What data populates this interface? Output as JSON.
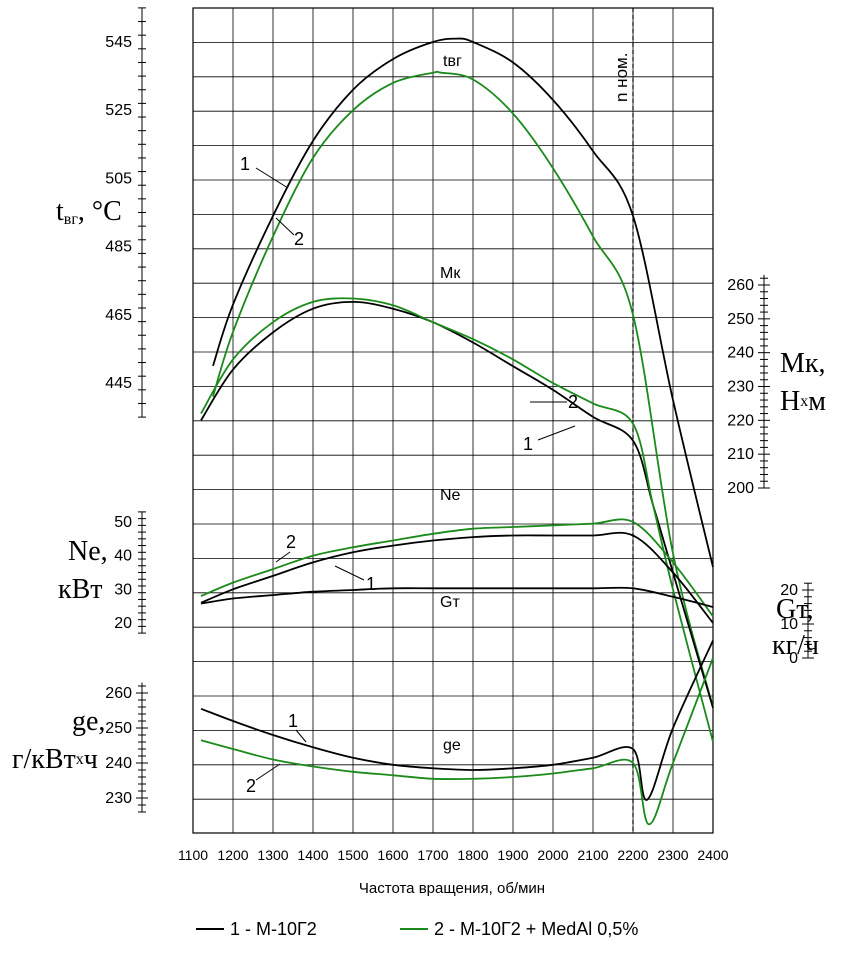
{
  "chart_data": {
    "type": "line",
    "xlabel": "Частота вращения, об/мин",
    "x_ticks": [
      1100,
      1200,
      1300,
      1400,
      1500,
      1600,
      1700,
      1800,
      1900,
      2000,
      2100,
      2200,
      2300,
      2400
    ],
    "x_range": [
      1100,
      2400
    ],
    "nominal_label": "n ном.",
    "nominal_x": 2200,
    "legend": [
      {
        "label": "1 - М-10Г2",
        "color": "#000000"
      },
      {
        "label": "2 - М-10Г2 + MedAl 0,5%",
        "color": "#1a8a1a"
      }
    ],
    "axes": {
      "t": {
        "label_main": "t",
        "label_sub": "вг",
        "label_tail": ", °C",
        "ticks": [
          445,
          465,
          485,
          505,
          525,
          545
        ]
      },
      "M": {
        "label_line1": "Mк,",
        "label_line2_a": "Н",
        "label_line2_x": "x",
        "label_line2_b": "м",
        "ticks": [
          200,
          210,
          220,
          230,
          240,
          250,
          260
        ]
      },
      "N": {
        "label_line1": "Ne,",
        "label_line2": "кВт",
        "ticks": [
          20,
          30,
          40,
          50
        ]
      },
      "G": {
        "label_line1": "Gт,",
        "label_line2": "кг/ч",
        "ticks": [
          0,
          10,
          20
        ]
      },
      "g": {
        "label_line1": "ge,",
        "label_line2_a": "г/кВт",
        "label_line2_x": "x",
        "label_line2_b": "ч",
        "ticks": [
          230,
          240,
          250,
          260
        ]
      }
    },
    "curve_labels": {
      "t": "tвг",
      "M": "Mк",
      "N": "Ne",
      "G": "Gт",
      "g": "ge"
    },
    "series_markers": [
      "1",
      "2"
    ],
    "series": [
      {
        "name": "1",
        "param": "t",
        "x": [
          1150,
          1200,
          1300,
          1400,
          1500,
          1600,
          1700,
          1760,
          1800,
          1900,
          2000,
          2100,
          2200,
          2300,
          2400
        ],
        "values": [
          450,
          468,
          494,
          516,
          531,
          540,
          545,
          546,
          545,
          539,
          528,
          513,
          494,
          440,
          391
        ]
      },
      {
        "name": "2",
        "param": "t",
        "x": [
          1150,
          1200,
          1300,
          1400,
          1500,
          1600,
          1700,
          1720,
          1800,
          1900,
          2000,
          2100,
          2200,
          2300,
          2400
        ],
        "values": [
          441,
          460,
          488,
          511,
          525,
          533,
          536,
          536,
          534,
          524,
          508,
          488,
          465,
          395,
          350
        ]
      },
      {
        "name": "1",
        "param": "M",
        "x": [
          1120,
          1200,
          1300,
          1400,
          1500,
          1600,
          1700,
          1800,
          1900,
          2000,
          2100,
          2200,
          2250,
          2300,
          2400
        ],
        "values": [
          220,
          235,
          246,
          253,
          255,
          253,
          249,
          243,
          236,
          229,
          221,
          214,
          195,
          175,
          135
        ]
      },
      {
        "name": "2",
        "param": "M",
        "x": [
          1120,
          1200,
          1300,
          1400,
          1500,
          1600,
          1700,
          1800,
          1900,
          2000,
          2100,
          2200,
          2250,
          2300,
          2400
        ],
        "values": [
          222,
          238,
          249,
          255,
          256,
          254,
          249,
          244,
          238,
          231,
          225,
          219,
          195,
          170,
          125
        ]
      },
      {
        "name": "1",
        "param": "N",
        "x": [
          1120,
          1200,
          1300,
          1400,
          1500,
          1600,
          1700,
          1800,
          1900,
          2000,
          2100,
          2200,
          2300,
          2400
        ],
        "values": [
          26,
          30,
          34,
          38,
          41,
          43,
          44.5,
          45.5,
          46,
          46,
          46,
          46,
          35,
          20
        ]
      },
      {
        "name": "2",
        "param": "N",
        "x": [
          1120,
          1200,
          1300,
          1400,
          1500,
          1600,
          1700,
          1800,
          1900,
          2000,
          2100,
          2200,
          2300,
          2400
        ],
        "values": [
          28,
          32,
          36,
          40,
          42.5,
          44.5,
          46.5,
          48,
          48.5,
          49,
          49.5,
          50,
          38,
          22
        ]
      },
      {
        "name": "1",
        "param": "G",
        "x": [
          1120,
          1200,
          1300,
          1400,
          1500,
          1600,
          1700,
          1800,
          1900,
          2000,
          2100,
          2200,
          2300,
          2400
        ],
        "values": [
          16,
          17.5,
          18.5,
          19.5,
          20,
          20.5,
          20.5,
          20.5,
          20.5,
          20.5,
          20.5,
          20.5,
          18,
          15
        ]
      },
      {
        "name": "1",
        "param": "g",
        "x": [
          1120,
          1200,
          1300,
          1400,
          1500,
          1600,
          1700,
          1800,
          1900,
          2000,
          2100,
          2200,
          2235,
          2300,
          2400
        ],
        "values": [
          255.5,
          252,
          248,
          244.5,
          241.5,
          239.5,
          238.5,
          238,
          238.5,
          239.5,
          241.5,
          244,
          229.5,
          250,
          275
        ]
      },
      {
        "name": "2",
        "param": "g",
        "x": [
          1120,
          1200,
          1300,
          1400,
          1500,
          1600,
          1700,
          1800,
          1900,
          2000,
          2100,
          2200,
          2240,
          2300,
          2400
        ],
        "values": [
          246.5,
          244,
          241,
          239,
          237.5,
          236.5,
          235.5,
          235.5,
          236,
          237,
          238.5,
          240,
          222.5,
          240,
          270
        ]
      }
    ]
  }
}
